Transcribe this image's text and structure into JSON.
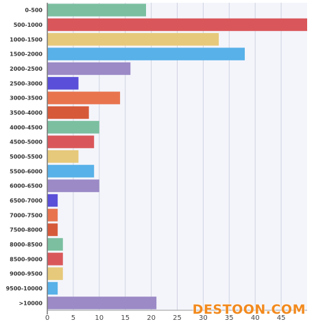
{
  "chart_data": {
    "type": "bar",
    "orientation": "horizontal",
    "categories": [
      "0-500",
      "500-1000",
      "1000-1500",
      "1500-2000",
      "2000-2500",
      "2500-3000",
      "3000-3500",
      "3500-4000",
      "4000-4500",
      "4500-5000",
      "5000-5500",
      "5500-6000",
      "6000-6500",
      "6500-7000",
      "7000-7500",
      "7500-8000",
      "8000-8500",
      "8500-9000",
      "9000-9500",
      "9500-10000",
      ">10000"
    ],
    "values": [
      19,
      50,
      33,
      38,
      16,
      6,
      14,
      8,
      10,
      9,
      6,
      9,
      10,
      2,
      2,
      2,
      3,
      3,
      3,
      2,
      21
    ],
    "colors": [
      "#7bbfa0",
      "#d9575a",
      "#e6c97a",
      "#58b1e8",
      "#9b8ac6",
      "#5a4fd8",
      "#e8744e",
      "#d65a3a",
      "#7bbfa0",
      "#d9575a",
      "#e6c97a",
      "#58b1e8",
      "#9b8ac6",
      "#5a4fd8",
      "#e8744e",
      "#d65a3a",
      "#7bbfa0",
      "#d9575a",
      "#e6c97a",
      "#58b1e8",
      "#9b8ac6"
    ],
    "x_ticks": [
      0,
      5,
      10,
      15,
      20,
      25,
      30,
      35,
      40,
      45
    ],
    "xlim": [
      0,
      50
    ],
    "grid": true,
    "title": "",
    "xlabel": "",
    "ylabel": ""
  },
  "watermark": {
    "text": "DESTOON.COM"
  }
}
